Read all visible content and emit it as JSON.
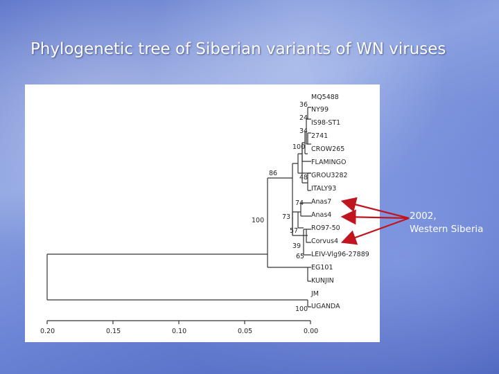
{
  "slide": {
    "title": "Phylogenetic tree of Siberian variants of WN viruses",
    "note_lines": [
      "2002,",
      "Western Siberia"
    ]
  },
  "tree": {
    "taxa": [
      "MQ5488",
      "NY99",
      "IS98-ST1",
      "2741",
      "CROW265",
      "FLAMINGO",
      "GROU3282",
      "ITALY93",
      "Anas7",
      "Anas4",
      "RO97-50",
      "Corvus4",
      "LEIV-Vlg96-27889",
      "EG101",
      "KUNJIN",
      "JM",
      "UGANDA"
    ],
    "bootstrap": [
      "36",
      "24",
      "34",
      "100",
      "86",
      "48",
      "74",
      "73",
      "100",
      "57",
      "39",
      "65",
      "100"
    ],
    "axis_ticks": [
      "0.20",
      "0.15",
      "0.10",
      "0.05",
      "0.00"
    ]
  },
  "colors": {
    "arrow": "#c0151e",
    "tree_line": "#333333"
  }
}
